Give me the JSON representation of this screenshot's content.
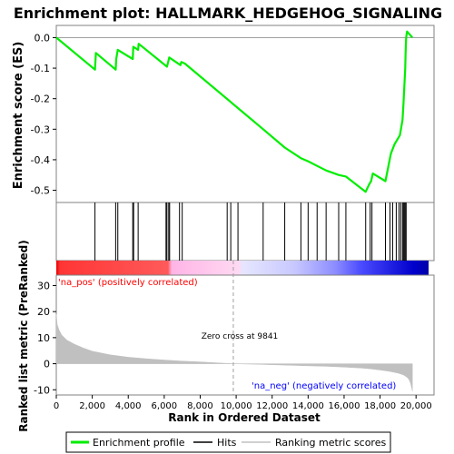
{
  "chart_data": {
    "type": "line",
    "title": "Enrichment plot: HALLMARK_HEDGEHOG_SIGNALING",
    "es_panel": {
      "ylabel": "Enrichment score (ES)",
      "ylim": [
        -0.54,
        0.04
      ],
      "yticks": [
        0.0,
        -0.1,
        -0.2,
        -0.3,
        -0.4,
        -0.5
      ],
      "ytick_labels": [
        "0.0",
        "-0.1",
        "-0.2",
        "-0.3",
        "-0.4",
        "-0.5"
      ],
      "series": [
        {
          "name": "Enrichment profile",
          "color": "#00ee00",
          "x": [
            0,
            2150,
            2200,
            3300,
            3330,
            3420,
            4250,
            4280,
            4550,
            4580,
            6150,
            6200,
            6280,
            6900,
            6950,
            7150,
            11500,
            12700,
            13600,
            14000,
            14500,
            15000,
            15700,
            16100,
            17200,
            17400,
            17500,
            17600,
            18300,
            18600,
            18800,
            19100,
            19250,
            19300,
            19350,
            19400,
            19420,
            19450,
            19500,
            19800
          ],
          "y": [
            0.0,
            -0.105,
            -0.05,
            -0.105,
            -0.07,
            -0.04,
            -0.07,
            -0.03,
            -0.04,
            -0.02,
            -0.095,
            -0.085,
            -0.065,
            -0.09,
            -0.08,
            -0.085,
            -0.3,
            -0.36,
            -0.395,
            -0.405,
            -0.42,
            -0.435,
            -0.45,
            -0.455,
            -0.505,
            -0.48,
            -0.47,
            -0.445,
            -0.47,
            -0.38,
            -0.35,
            -0.32,
            -0.27,
            -0.22,
            -0.16,
            -0.1,
            -0.05,
            0.0,
            0.02,
            0.0
          ]
        }
      ]
    },
    "hits": [
      2150,
      3300,
      3420,
      4250,
      4300,
      4550,
      6100,
      6150,
      6250,
      6300,
      6850,
      7000,
      9500,
      9700,
      10100,
      11500,
      12700,
      13600,
      14000,
      14500,
      15000,
      15700,
      16100,
      17200,
      17450,
      17550,
      18300,
      18550,
      18700,
      18900,
      19050,
      19150,
      19250,
      19300,
      19350,
      19400,
      19450
    ],
    "metric_panel": {
      "ylabel": "Ranked list metric (PreRanked)",
      "xlabel": "Rank in Ordered Dataset",
      "ylim": [
        -12,
        34
      ],
      "yticks": [
        30,
        20,
        10,
        0,
        -10
      ],
      "ytick_labels": [
        "30",
        "20",
        "10",
        "0",
        "-10"
      ],
      "xlim": [
        0,
        21000
      ],
      "xticks": [
        0,
        2000,
        4000,
        6000,
        8000,
        10000,
        12000,
        14000,
        16000,
        18000,
        20000
      ],
      "xtick_labels": [
        "0",
        "2,000",
        "4,000",
        "6,000",
        "8,000",
        "10,000",
        "12,000",
        "14,000",
        "16,000",
        "18,000",
        "20,000"
      ],
      "series": [
        {
          "name": "Ranking metric scores",
          "color": "#c0c0c0",
          "x": [
            0,
            50,
            150,
            300,
            600,
            1000,
            1500,
            2000,
            3000,
            4000,
            5000,
            6000,
            7000,
            8000,
            9000,
            9841,
            11000,
            12000,
            13000,
            14000,
            15000,
            16000,
            17000,
            17500,
            18000,
            18500,
            19000,
            19300,
            19500,
            19600,
            19700,
            19750,
            19800
          ],
          "y": [
            19,
            15,
            13,
            11,
            9,
            7.5,
            6,
            4.8,
            3.4,
            2.5,
            1.9,
            1.4,
            1.0,
            0.7,
            0.3,
            0,
            -0.2,
            -0.4,
            -0.6,
            -0.8,
            -1.0,
            -1.3,
            -1.7,
            -2.0,
            -2.4,
            -2.9,
            -3.6,
            -4.3,
            -5.2,
            -6.0,
            -7.5,
            -9.0,
            -10.5
          ]
        }
      ],
      "zero_cross_label": "Zero cross at 9841",
      "zero_cross": 9841,
      "pos_label": "'na_pos' (positively correlated)",
      "neg_label": "'na_neg' (negatively correlated)",
      "pos_label_color": "#ff0000",
      "neg_label_color": "#0000ff"
    },
    "legend": {
      "placement": "bottom",
      "items": [
        {
          "label": "Enrichment profile",
          "color": "#00ee00"
        },
        {
          "label": "Hits",
          "color": "#000000"
        },
        {
          "label": "Ranking metric scores",
          "color": "#c0c0c0"
        }
      ]
    },
    "rank_max": 19800
  }
}
